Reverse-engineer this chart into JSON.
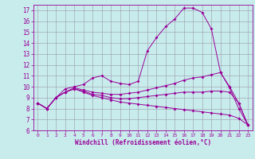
{
  "xlabel": "Windchill (Refroidissement éolien,°C)",
  "bg_color": "#c8ecec",
  "line_color": "#990099",
  "grid_color": "#9999aa",
  "xlim": [
    -0.5,
    23.5
  ],
  "ylim": [
    6,
    17.5
  ],
  "yticks": [
    6,
    7,
    8,
    9,
    10,
    11,
    12,
    13,
    14,
    15,
    16,
    17
  ],
  "xticks": [
    0,
    1,
    2,
    3,
    4,
    5,
    6,
    7,
    8,
    9,
    10,
    11,
    12,
    13,
    14,
    15,
    16,
    17,
    18,
    19,
    20,
    21,
    22,
    23
  ],
  "lines": [
    {
      "x": [
        0,
        1,
        2,
        3,
        4,
        5,
        6,
        7,
        8,
        9,
        10,
        11,
        12,
        13,
        14,
        15,
        16,
        17,
        18,
        19,
        20,
        21,
        22,
        23
      ],
      "y": [
        8.5,
        8.0,
        9.0,
        9.8,
        10.0,
        10.2,
        10.8,
        11.0,
        10.5,
        10.3,
        10.2,
        10.5,
        13.3,
        14.5,
        15.5,
        16.2,
        17.2,
        17.2,
        16.8,
        15.3,
        11.3,
        9.9,
        8.0,
        6.5
      ]
    },
    {
      "x": [
        0,
        1,
        2,
        3,
        4,
        5,
        6,
        7,
        8,
        9,
        10,
        11,
        12,
        13,
        14,
        15,
        16,
        17,
        18,
        19,
        20,
        21,
        22,
        23
      ],
      "y": [
        8.5,
        8.0,
        9.0,
        9.5,
        9.9,
        9.7,
        9.5,
        9.4,
        9.3,
        9.3,
        9.4,
        9.5,
        9.7,
        9.9,
        10.1,
        10.3,
        10.6,
        10.8,
        10.9,
        11.1,
        11.3,
        10.0,
        8.5,
        6.5
      ]
    },
    {
      "x": [
        0,
        1,
        2,
        3,
        4,
        5,
        6,
        7,
        8,
        9,
        10,
        11,
        12,
        13,
        14,
        15,
        16,
        17,
        18,
        19,
        20,
        21,
        22,
        23
      ],
      "y": [
        8.5,
        8.0,
        9.0,
        9.5,
        9.8,
        9.6,
        9.3,
        9.2,
        9.0,
        8.9,
        8.9,
        9.0,
        9.1,
        9.2,
        9.3,
        9.4,
        9.5,
        9.5,
        9.5,
        9.6,
        9.6,
        9.5,
        8.5,
        6.5
      ]
    },
    {
      "x": [
        0,
        1,
        2,
        3,
        4,
        5,
        6,
        7,
        8,
        9,
        10,
        11,
        12,
        13,
        14,
        15,
        16,
        17,
        18,
        19,
        20,
        21,
        22,
        23
      ],
      "y": [
        8.5,
        8.0,
        9.0,
        9.5,
        9.8,
        9.5,
        9.2,
        9.0,
        8.8,
        8.6,
        8.5,
        8.4,
        8.3,
        8.2,
        8.1,
        8.0,
        7.9,
        7.8,
        7.7,
        7.6,
        7.5,
        7.4,
        7.1,
        6.5
      ]
    }
  ]
}
